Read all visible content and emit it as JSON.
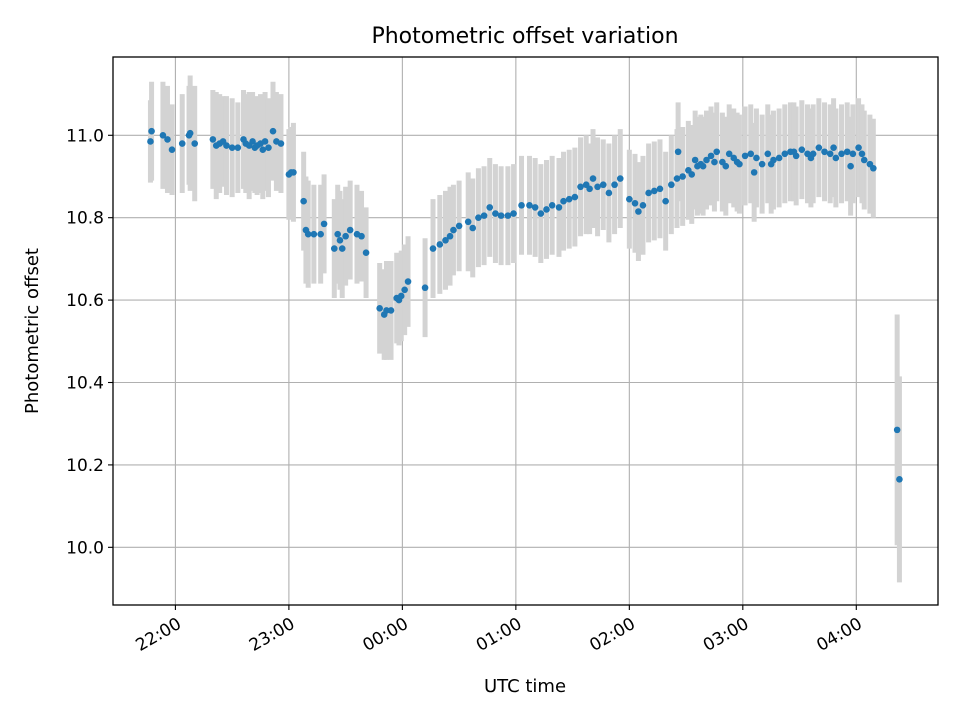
{
  "chart_data": {
    "type": "scatter",
    "title": "Photometric offset variation",
    "xlabel": "UTC time",
    "ylabel": "Photometric offset",
    "x_unit": "hours after 22:00 UTC",
    "xlim": [
      -0.55,
      6.72
    ],
    "ylim": [
      9.86,
      11.19
    ],
    "x_ticks": [
      {
        "value": 0,
        "label": "22:00"
      },
      {
        "value": 1,
        "label": "23:00"
      },
      {
        "value": 2,
        "label": "00:00"
      },
      {
        "value": 3,
        "label": "01:00"
      },
      {
        "value": 4,
        "label": "02:00"
      },
      {
        "value": 5,
        "label": "03:00"
      },
      {
        "value": 6,
        "label": "04:00"
      }
    ],
    "y_ticks": [
      {
        "value": 10.0,
        "label": "10.0"
      },
      {
        "value": 10.2,
        "label": "10.2"
      },
      {
        "value": 10.4,
        "label": "10.4"
      },
      {
        "value": 10.6,
        "label": "10.6"
      },
      {
        "value": 10.8,
        "label": "10.8"
      },
      {
        "value": 11.0,
        "label": "11.0"
      }
    ],
    "grid": true,
    "series": [
      {
        "name": "offset",
        "marker_color": "#1f77b4",
        "errorbar_color": "#d3d3d3",
        "points": [
          [
            -0.22,
            10.985,
            0.1
          ],
          [
            -0.21,
            11.01,
            0.12
          ],
          [
            -0.11,
            11.0,
            0.13
          ],
          [
            -0.07,
            10.99,
            0.13
          ],
          [
            -0.03,
            10.965,
            0.11
          ],
          [
            0.06,
            10.98,
            0.12
          ],
          [
            0.12,
            11.0,
            0.12
          ],
          [
            0.13,
            11.005,
            0.14
          ],
          [
            0.17,
            10.98,
            0.14
          ],
          [
            0.33,
            10.99,
            0.12
          ],
          [
            0.36,
            10.975,
            0.13
          ],
          [
            0.39,
            10.98,
            0.12
          ],
          [
            0.42,
            10.985,
            0.11
          ],
          [
            0.45,
            10.975,
            0.12
          ],
          [
            0.5,
            10.97,
            0.12
          ],
          [
            0.55,
            10.97,
            0.11
          ],
          [
            0.6,
            10.99,
            0.12
          ],
          [
            0.62,
            10.98,
            0.12
          ],
          [
            0.65,
            10.975,
            0.13
          ],
          [
            0.68,
            10.985,
            0.12
          ],
          [
            0.7,
            10.97,
            0.11
          ],
          [
            0.72,
            10.975,
            0.12
          ],
          [
            0.75,
            10.98,
            0.12
          ],
          [
            0.77,
            10.965,
            0.12
          ],
          [
            0.79,
            10.985,
            0.12
          ],
          [
            0.82,
            10.97,
            0.12
          ],
          [
            0.86,
            11.01,
            0.12
          ],
          [
            0.89,
            10.985,
            0.12
          ],
          [
            0.93,
            10.98,
            0.12
          ],
          [
            1.0,
            10.905,
            0.11
          ],
          [
            1.02,
            10.91,
            0.11
          ],
          [
            1.04,
            10.91,
            0.12
          ],
          [
            1.13,
            10.84,
            0.12
          ],
          [
            1.15,
            10.77,
            0.13
          ],
          [
            1.17,
            10.76,
            0.13
          ],
          [
            1.22,
            10.76,
            0.12
          ],
          [
            1.28,
            10.76,
            0.12
          ],
          [
            1.31,
            10.785,
            0.12
          ],
          [
            1.4,
            10.725,
            0.12
          ],
          [
            1.43,
            10.76,
            0.12
          ],
          [
            1.45,
            10.745,
            0.12
          ],
          [
            1.47,
            10.725,
            0.12
          ],
          [
            1.5,
            10.755,
            0.12
          ],
          [
            1.54,
            10.77,
            0.12
          ],
          [
            1.6,
            10.76,
            0.12
          ],
          [
            1.64,
            10.755,
            0.11
          ],
          [
            1.68,
            10.715,
            0.11
          ],
          [
            1.8,
            10.58,
            0.11
          ],
          [
            1.84,
            10.565,
            0.11
          ],
          [
            1.86,
            10.575,
            0.12
          ],
          [
            1.9,
            10.575,
            0.12
          ],
          [
            1.95,
            10.605,
            0.11
          ],
          [
            1.97,
            10.6,
            0.11
          ],
          [
            1.99,
            10.61,
            0.11
          ],
          [
            2.02,
            10.625,
            0.11
          ],
          [
            2.05,
            10.645,
            0.11
          ],
          [
            2.2,
            10.63,
            0.12
          ],
          [
            2.27,
            10.725,
            0.12
          ],
          [
            2.33,
            10.735,
            0.12
          ],
          [
            2.38,
            10.745,
            0.12
          ],
          [
            2.42,
            10.755,
            0.12
          ],
          [
            2.45,
            10.77,
            0.11
          ],
          [
            2.5,
            10.78,
            0.11
          ],
          [
            2.58,
            10.79,
            0.12
          ],
          [
            2.62,
            10.775,
            0.12
          ],
          [
            2.67,
            10.8,
            0.12
          ],
          [
            2.72,
            10.805,
            0.12
          ],
          [
            2.77,
            10.825,
            0.12
          ],
          [
            2.82,
            10.81,
            0.12
          ],
          [
            2.87,
            10.805,
            0.12
          ],
          [
            2.93,
            10.805,
            0.12
          ],
          [
            2.98,
            10.81,
            0.12
          ],
          [
            3.05,
            10.83,
            0.12
          ],
          [
            3.12,
            10.83,
            0.12
          ],
          [
            3.17,
            10.825,
            0.12
          ],
          [
            3.22,
            10.81,
            0.12
          ],
          [
            3.27,
            10.82,
            0.12
          ],
          [
            3.32,
            10.83,
            0.12
          ],
          [
            3.38,
            10.825,
            0.12
          ],
          [
            3.42,
            10.84,
            0.12
          ],
          [
            3.47,
            10.845,
            0.12
          ],
          [
            3.52,
            10.85,
            0.12
          ],
          [
            3.57,
            10.875,
            0.12
          ],
          [
            3.62,
            10.88,
            0.12
          ],
          [
            3.65,
            10.87,
            0.11
          ],
          [
            3.68,
            10.895,
            0.12
          ],
          [
            3.72,
            10.875,
            0.12
          ],
          [
            3.77,
            10.88,
            0.11
          ],
          [
            3.82,
            10.86,
            0.12
          ],
          [
            3.87,
            10.88,
            0.12
          ],
          [
            3.92,
            10.895,
            0.12
          ],
          [
            4.0,
            10.845,
            0.12
          ],
          [
            4.05,
            10.835,
            0.12
          ],
          [
            4.08,
            10.815,
            0.12
          ],
          [
            4.12,
            10.83,
            0.12
          ],
          [
            4.17,
            10.86,
            0.12
          ],
          [
            4.22,
            10.865,
            0.12
          ],
          [
            4.27,
            10.87,
            0.12
          ],
          [
            4.32,
            10.84,
            0.12
          ],
          [
            4.37,
            10.88,
            0.12
          ],
          [
            4.42,
            10.895,
            0.12
          ],
          [
            4.47,
            10.9,
            0.12
          ],
          [
            4.52,
            10.915,
            0.12
          ],
          [
            4.55,
            10.905,
            0.12
          ],
          [
            4.6,
            10.925,
            0.12
          ],
          [
            4.63,
            10.93,
            0.12
          ],
          [
            4.68,
            10.94,
            0.12
          ],
          [
            4.72,
            10.95,
            0.12
          ],
          [
            4.75,
            10.935,
            0.12
          ],
          [
            4.82,
            10.935,
            0.12
          ],
          [
            4.88,
            10.955,
            0.12
          ],
          [
            4.92,
            10.945,
            0.12
          ],
          [
            4.97,
            10.93,
            0.12
          ],
          [
            5.02,
            10.95,
            0.12
          ],
          [
            5.07,
            10.955,
            0.12
          ],
          [
            5.12,
            10.945,
            0.12
          ],
          [
            5.17,
            10.93,
            0.12
          ],
          [
            5.22,
            10.955,
            0.12
          ],
          [
            5.27,
            10.94,
            0.12
          ],
          [
            5.32,
            10.945,
            0.12
          ],
          [
            5.37,
            10.955,
            0.12
          ],
          [
            5.42,
            10.96,
            0.12
          ],
          [
            5.47,
            10.95,
            0.12
          ],
          [
            5.52,
            10.965,
            0.12
          ],
          [
            5.57,
            10.955,
            0.12
          ],
          [
            5.62,
            10.955,
            0.12
          ],
          [
            5.67,
            10.97,
            0.12
          ],
          [
            5.72,
            10.96,
            0.12
          ],
          [
            5.77,
            10.955,
            0.12
          ],
          [
            5.82,
            10.945,
            0.12
          ],
          [
            5.87,
            10.955,
            0.12
          ],
          [
            5.92,
            10.96,
            0.12
          ],
          [
            5.97,
            10.955,
            0.12
          ],
          [
            6.02,
            10.97,
            0.12
          ],
          [
            6.07,
            10.94,
            0.12
          ],
          [
            6.12,
            10.93,
            0.12
          ],
          [
            6.15,
            10.92,
            0.12
          ],
          [
            4.43,
            10.96,
            0.12
          ],
          [
            4.58,
            10.94,
            0.12
          ],
          [
            4.65,
            10.925,
            0.12
          ],
          [
            4.77,
            10.96,
            0.12
          ],
          [
            4.85,
            10.925,
            0.12
          ],
          [
            4.95,
            10.935,
            0.12
          ],
          [
            5.1,
            10.91,
            0.12
          ],
          [
            5.25,
            10.93,
            0.12
          ],
          [
            5.45,
            10.96,
            0.12
          ],
          [
            5.6,
            10.945,
            0.12
          ],
          [
            5.8,
            10.97,
            0.12
          ],
          [
            5.95,
            10.925,
            0.12
          ],
          [
            6.05,
            10.955,
            0.12
          ],
          [
            6.36,
            10.285,
            0.28
          ],
          [
            6.38,
            10.165,
            0.25
          ]
        ]
      }
    ]
  }
}
